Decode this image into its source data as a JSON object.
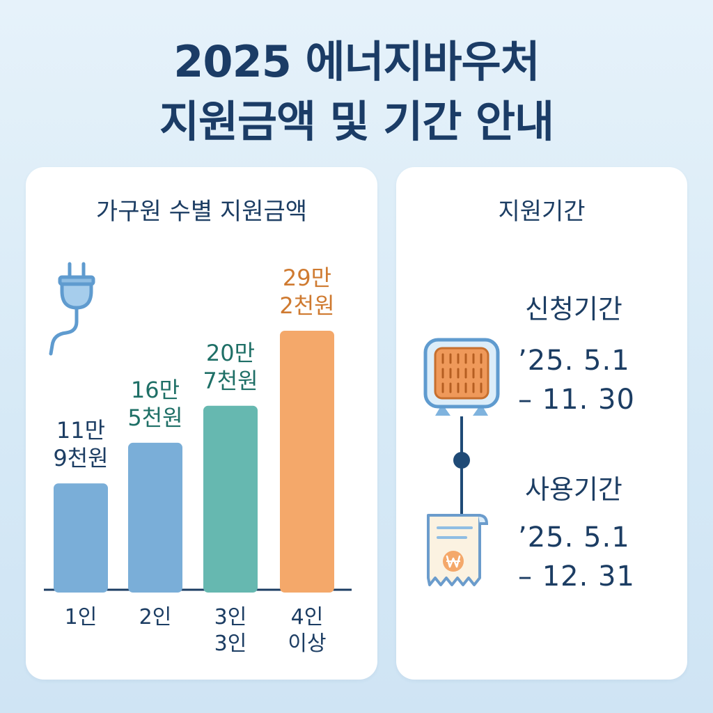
{
  "header": {
    "title_line1": "2025 에너지바우처",
    "title_line2": "지원금액 및 기간 안내"
  },
  "colors": {
    "title": "#1b3c66",
    "bar_1": "#7aaed8",
    "bar_2": "#7aaed8",
    "bar_3": "#66b8b0",
    "bar_4": "#f4a86a",
    "label_blue": "#1c3d63",
    "label_teal": "#1e6f66",
    "label_orange": "#cf7a30"
  },
  "support_amount": {
    "title": "가구원 수별 지원금액",
    "icon": "plug-icon"
  },
  "chart_data": {
    "type": "bar",
    "title": "가구원 수별 지원금액",
    "categories": [
      "1인",
      "2인",
      "3인",
      "4인 이상"
    ],
    "values": [
      119000,
      165000,
      207000,
      292000
    ],
    "data_labels": [
      [
        "11만",
        "9천원"
      ],
      [
        "16만",
        "5천원"
      ],
      [
        "20만",
        "7천원"
      ],
      [
        "29만",
        "2천원"
      ]
    ],
    "tick_labels": [
      [
        "1인"
      ],
      [
        "2인"
      ],
      [
        "3인",
        "3인"
      ],
      [
        "4인",
        "이상"
      ]
    ],
    "xlabel": "",
    "ylabel": "",
    "ylim": [
      0,
      292000
    ],
    "grid": false,
    "legend": "none"
  },
  "period": {
    "title": "지원기간",
    "application": {
      "label": "신청기간",
      "line1": "’25. 5.1",
      "line2": "– 11. 30",
      "icon": "heater-icon"
    },
    "usage": {
      "label": "사용기간",
      "line1": "’25. 5.1",
      "line2": "– 12. 31",
      "icon": "receipt-icon"
    }
  }
}
